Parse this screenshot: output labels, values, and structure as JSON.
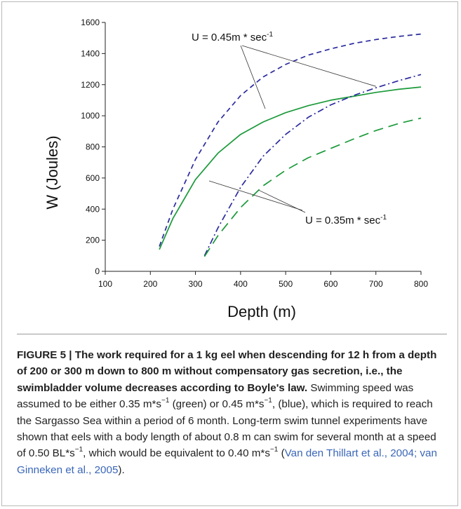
{
  "chart_data": {
    "type": "line",
    "xlabel": "Depth (m)",
    "ylabel": "W (Joules)",
    "xlim": [
      100,
      800
    ],
    "ylim": [
      0,
      1600
    ],
    "x_ticks": [
      "100",
      "200",
      "300",
      "400",
      "500",
      "600",
      "700",
      "800"
    ],
    "y_ticks": [
      "0",
      "200",
      "400",
      "600",
      "800",
      "1000",
      "1200",
      "1400",
      "1600"
    ],
    "grid": false,
    "legend": "none",
    "series": [
      {
        "style": "dashed",
        "color": "#2b2b9e",
        "x": [
          220,
          250,
          300,
          350,
          400,
          450,
          500,
          550,
          600,
          650,
          700,
          750,
          800
        ],
        "y": [
          160,
          400,
          720,
          960,
          1130,
          1250,
          1330,
          1390,
          1430,
          1465,
          1490,
          1510,
          1525
        ]
      },
      {
        "style": "solid",
        "color": "#1b9a3a",
        "x": [
          220,
          250,
          300,
          350,
          400,
          450,
          500,
          550,
          600,
          650,
          700,
          750,
          800
        ],
        "y": [
          140,
          340,
          590,
          760,
          880,
          960,
          1020,
          1065,
          1100,
          1125,
          1150,
          1170,
          1185
        ]
      },
      {
        "style": "dash-dot",
        "color": "#2b2b9e",
        "x": [
          320,
          350,
          400,
          450,
          500,
          550,
          600,
          650,
          700,
          750,
          800
        ],
        "y": [
          100,
          280,
          540,
          740,
          880,
          990,
          1070,
          1130,
          1180,
          1225,
          1265
        ]
      },
      {
        "style": "long-dash",
        "color": "#1b9a3a",
        "x": [
          320,
          350,
          400,
          450,
          500,
          550,
          600,
          650,
          700,
          750,
          800
        ],
        "y": [
          95,
          230,
          410,
          550,
          650,
          730,
          790,
          850,
          905,
          950,
          985
        ]
      }
    ],
    "annotations": [
      {
        "text": "U = 0.45m * sec",
        "superscript": "-1"
      },
      {
        "text": "U = 0.35m * sec",
        "superscript": "-1"
      }
    ]
  },
  "caption": {
    "label": "FIGURE 5 | ",
    "title": "The work required for a 1 kg eel when descending for 12 h from a depth of 200 or 300 m down to 800 m without compensatory gas secretion, i.e., the swimbladder volume decreases according to Boyle's law.",
    "s1": " Swimming speed was assumed to be either 0.35 m*s",
    "s2": " (green) or 0.45 m*s",
    "s3": ", (blue), which is required to reach the Sargasso Sea within a period of 6 month. Long-term swim tunnel experiments have shown that eels with a body length of about 0.8 m can swim for several month at a speed of 0.50 BL*s",
    "s4": ", which would be equivalent to 0.40 m*s",
    "s5": "(",
    "citation": "Van den Thillart et al., 2004; van Ginneken et al., 2005",
    "s6": ").",
    "sup": "−1"
  }
}
